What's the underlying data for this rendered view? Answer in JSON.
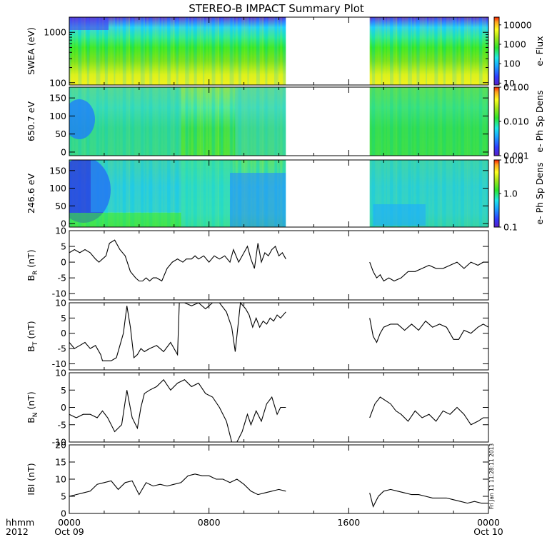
{
  "title": "STEREO-B IMPACT Summary Plot",
  "time_axis": {
    "corner_labels": [
      "hhmm",
      "2012"
    ],
    "ticks": [
      {
        "hour": 0,
        "label": "0000",
        "date": "Oct 09"
      },
      {
        "hour": 8,
        "label": "0800",
        "date": ""
      },
      {
        "hour": 16,
        "label": "1600",
        "date": ""
      },
      {
        "hour": 24,
        "label": "0000",
        "date": "Oct 10"
      }
    ]
  },
  "timestamp": "Fri Jan 11 11:28:11 2013",
  "chart_data": [
    {
      "type": "heatmap",
      "panel": "swea",
      "ylabel": "SWEA (eV)",
      "yscale": "log",
      "ylim": [
        90,
        2000
      ],
      "yticks": [
        {
          "v": 100,
          "label": "100"
        },
        {
          "v": 1000,
          "label": "1000"
        }
      ],
      "xlim": [
        0,
        24
      ],
      "data_gaps": [
        [
          12.4,
          17.2
        ]
      ],
      "colorbar": {
        "label": "e- Flux",
        "scale": "log",
        "range": [
          8,
          25000
        ],
        "ticks": [
          {
            "v": 10,
            "label": "10"
          },
          {
            "v": 100,
            "label": "100"
          },
          {
            "v": 1000,
            "label": "1000"
          },
          {
            "v": 10000,
            "label": "10000"
          }
        ]
      }
    },
    {
      "type": "heatmap",
      "panel": "pad650",
      "ylabel": "650.7 eV",
      "yscale": "linear",
      "ylim": [
        -10,
        180
      ],
      "yticks": [
        {
          "v": 0,
          "label": "0"
        },
        {
          "v": 50,
          "label": "50"
        },
        {
          "v": 100,
          "label": "100"
        },
        {
          "v": 150,
          "label": "150"
        }
      ],
      "xlim": [
        0,
        24
      ],
      "data_gaps": [
        [
          12.4,
          17.2
        ]
      ],
      "colorbar": {
        "label": "e- Ph Sp Dens",
        "scale": "log",
        "range": [
          0.001,
          0.1
        ],
        "ticks": [
          {
            "v": 0.001,
            "label": "0.001"
          },
          {
            "v": 0.01,
            "label": "0.010"
          },
          {
            "v": 0.1,
            "label": "0.100"
          }
        ]
      }
    },
    {
      "type": "heatmap",
      "panel": "pad246",
      "ylabel": "246.6 eV",
      "yscale": "linear",
      "ylim": [
        -10,
        180
      ],
      "yticks": [
        {
          "v": 0,
          "label": "0"
        },
        {
          "v": 50,
          "label": "50"
        },
        {
          "v": 100,
          "label": "100"
        },
        {
          "v": 150,
          "label": "150"
        }
      ],
      "xlim": [
        0,
        24
      ],
      "data_gaps": [
        [
          12.4,
          17.2
        ]
      ],
      "colorbar": {
        "label": "e- Ph Sp Dens",
        "scale": "log",
        "range": [
          0.1,
          10
        ],
        "ticks": [
          {
            "v": 0.1,
            "label": "0.1"
          },
          {
            "v": 1,
            "label": "1.0"
          },
          {
            "v": 10,
            "label": "10.0"
          }
        ]
      }
    },
    {
      "type": "line",
      "panel": "br",
      "ylabel": "B_R (nT)",
      "ylabel_main": "B",
      "ylabel_sub": "R",
      "ylabel_unit": " (nT)",
      "ylim": [
        -12,
        10
      ],
      "yticks": [
        {
          "v": -10,
          "label": "-10"
        },
        {
          "v": -5,
          "label": "-5"
        },
        {
          "v": 0,
          "label": "0"
        },
        {
          "v": 5,
          "label": "5"
        },
        {
          "v": 10,
          "label": "10"
        }
      ],
      "xlim": [
        0,
        24
      ],
      "x": [
        0,
        0.3,
        0.6,
        0.9,
        1.2,
        1.5,
        1.7,
        1.9,
        2.1,
        2.3,
        2.6,
        2.9,
        3.2,
        3.5,
        3.8,
        4.0,
        4.2,
        4.4,
        4.6,
        4.8,
        5.0,
        5.3,
        5.6,
        5.9,
        6.2,
        6.5,
        6.7,
        7.0,
        7.2,
        7.4,
        7.7,
        8.0,
        8.3,
        8.6,
        8.9,
        9.2,
        9.4,
        9.7,
        10.0,
        10.2,
        10.4,
        10.6,
        10.8,
        11.0,
        11.2,
        11.4,
        11.6,
        11.8,
        12.0,
        12.2,
        12.4,
        null,
        17.2,
        17.4,
        17.6,
        17.8,
        18.0,
        18.3,
        18.6,
        19.0,
        19.4,
        19.8,
        20.2,
        20.6,
        21.0,
        21.4,
        21.8,
        22.2,
        22.6,
        23.0,
        23.4,
        23.7,
        24.0
      ],
      "y": [
        3,
        4,
        3,
        4,
        3,
        1,
        0,
        1,
        2,
        6,
        7,
        4,
        2,
        -3,
        -5,
        -6,
        -6,
        -5,
        -6,
        -5,
        -5,
        -6,
        -2,
        0,
        1,
        0,
        1,
        1,
        2,
        1,
        2,
        0,
        2,
        1,
        2,
        0,
        4,
        0,
        3,
        5,
        1,
        -2,
        6,
        0,
        3,
        2,
        4,
        5,
        2,
        3,
        1,
        null,
        0,
        -3,
        -5,
        -4,
        -6,
        -5,
        -6,
        -5,
        -3,
        -3,
        -2,
        -1,
        -2,
        -2,
        -1,
        0,
        -2,
        0,
        -1,
        0,
        0
      ]
    },
    {
      "type": "line",
      "panel": "bt",
      "ylabel": "B_T (nT)",
      "ylabel_main": "B",
      "ylabel_sub": "T",
      "ylabel_unit": " (nT)",
      "ylim": [
        -12,
        10
      ],
      "yticks": [
        {
          "v": -10,
          "label": "-10"
        },
        {
          "v": -5,
          "label": "-5"
        },
        {
          "v": 0,
          "label": "0"
        },
        {
          "v": 5,
          "label": "5"
        },
        {
          "v": 10,
          "label": "10"
        }
      ],
      "xlim": [
        0,
        24
      ],
      "x": [
        0,
        0.3,
        0.6,
        0.9,
        1.2,
        1.5,
        1.8,
        1.9,
        2.1,
        2.4,
        2.7,
        2.9,
        3.1,
        3.3,
        3.5,
        3.7,
        3.9,
        4.1,
        4.3,
        4.6,
        5.0,
        5.4,
        5.8,
        6.2,
        6.3,
        6.6,
        7.0,
        7.4,
        7.8,
        8.2,
        8.6,
        9.0,
        9.3,
        9.5,
        9.8,
        10.1,
        10.3,
        10.5,
        10.7,
        10.9,
        11.1,
        11.3,
        11.5,
        11.7,
        11.9,
        12.1,
        12.4,
        null,
        17.2,
        17.4,
        17.6,
        17.8,
        18.0,
        18.4,
        18.8,
        19.2,
        19.6,
        20.0,
        20.4,
        20.8,
        21.2,
        21.6,
        22.0,
        22.3,
        22.6,
        23.0,
        23.4,
        23.7,
        24.0
      ],
      "y": [
        -3,
        -5,
        -4,
        -3,
        -5,
        -4,
        -7,
        -9,
        -9,
        -9,
        -8,
        -4,
        0,
        9,
        2,
        -8,
        -7,
        -5,
        -6,
        -5,
        -4,
        -6,
        -3,
        -7,
        10,
        10,
        9,
        10,
        8,
        10,
        10,
        7,
        2,
        -6,
        10,
        8,
        6,
        2,
        5,
        2,
        4,
        3,
        5,
        4,
        6,
        5,
        7,
        null,
        5,
        -1,
        -3,
        0,
        2,
        3,
        3,
        1,
        3,
        1,
        4,
        2,
        3,
        2,
        -2,
        -2,
        1,
        0,
        2,
        3,
        2
      ]
    },
    {
      "type": "line",
      "panel": "bn",
      "ylabel": "B_N (nT)",
      "ylabel_main": "B",
      "ylabel_sub": "N",
      "ylabel_unit": " (nT)",
      "ylim": [
        -10,
        10
      ],
      "yticks": [
        {
          "v": -10,
          "label": "-10"
        },
        {
          "v": -5,
          "label": "-5"
        },
        {
          "v": 0,
          "label": "0"
        },
        {
          "v": 5,
          "label": "5"
        },
        {
          "v": 10,
          "label": "10"
        }
      ],
      "xlim": [
        0,
        24
      ],
      "x": [
        0,
        0.4,
        0.8,
        1.2,
        1.6,
        1.9,
        2.2,
        2.6,
        3.0,
        3.3,
        3.6,
        3.9,
        4.1,
        4.3,
        4.6,
        5.0,
        5.4,
        5.8,
        6.2,
        6.6,
        7.0,
        7.4,
        7.8,
        8.2,
        8.6,
        9.0,
        9.3,
        9.6,
        9.9,
        10.2,
        10.4,
        10.7,
        11.0,
        11.3,
        11.6,
        11.9,
        12.1,
        12.4,
        null,
        17.2,
        17.5,
        17.8,
        18.1,
        18.4,
        18.7,
        19.0,
        19.4,
        19.8,
        20.2,
        20.6,
        21.0,
        21.4,
        21.8,
        22.2,
        22.6,
        23.0,
        23.4,
        23.7,
        24.0
      ],
      "y": [
        -2,
        -3,
        -2,
        -2,
        -3,
        -1,
        -3,
        -7,
        -5,
        5,
        -3,
        -6,
        0,
        4,
        5,
        6,
        8,
        5,
        7,
        8,
        6,
        7,
        4,
        3,
        0,
        -4,
        -10,
        -10,
        -7,
        -2,
        -5,
        -1,
        -4,
        1,
        3,
        -2,
        0,
        0,
        null,
        -3,
        1,
        3,
        2,
        1,
        -1,
        -2,
        -4,
        -1,
        -3,
        -2,
        -4,
        -1,
        -2,
        0,
        -2,
        -5,
        -4,
        -3,
        -3
      ]
    },
    {
      "type": "line",
      "panel": "bmag",
      "ylabel": "IBI (nT)",
      "ylim": [
        0,
        20
      ],
      "yticks": [
        {
          "v": 0,
          "label": "0"
        },
        {
          "v": 5,
          "label": "5"
        },
        {
          "v": 10,
          "label": "10"
        },
        {
          "v": 15,
          "label": "15"
        },
        {
          "v": 20,
          "label": "20"
        }
      ],
      "xlim": [
        0,
        24
      ],
      "x": [
        0,
        0.4,
        0.8,
        1.2,
        1.6,
        2.0,
        2.4,
        2.8,
        3.2,
        3.6,
        4.0,
        4.4,
        4.8,
        5.2,
        5.6,
        6.0,
        6.4,
        6.8,
        7.2,
        7.6,
        8.0,
        8.4,
        8.8,
        9.2,
        9.6,
        10.0,
        10.4,
        10.8,
        11.2,
        11.6,
        12.0,
        12.4,
        null,
        17.2,
        17.4,
        17.7,
        18.0,
        18.4,
        18.8,
        19.2,
        19.6,
        20.0,
        20.4,
        20.8,
        21.2,
        21.6,
        22.0,
        22.4,
        22.8,
        23.2,
        23.6,
        24.0
      ],
      "y": [
        5,
        5.5,
        6,
        6.5,
        8.5,
        9,
        9.5,
        7,
        9,
        9.5,
        5.5,
        9,
        8,
        8.5,
        8,
        8.5,
        9,
        11,
        11.5,
        11,
        11,
        10,
        10,
        9,
        10,
        8.5,
        6.5,
        5.5,
        6,
        6.5,
        7,
        6.5,
        null,
        6,
        2,
        5,
        6.5,
        7,
        6.5,
        6,
        5.5,
        5.5,
        5,
        4.5,
        4.5,
        4.5,
        4,
        3.5,
        3,
        3.5,
        3,
        3
      ]
    }
  ]
}
